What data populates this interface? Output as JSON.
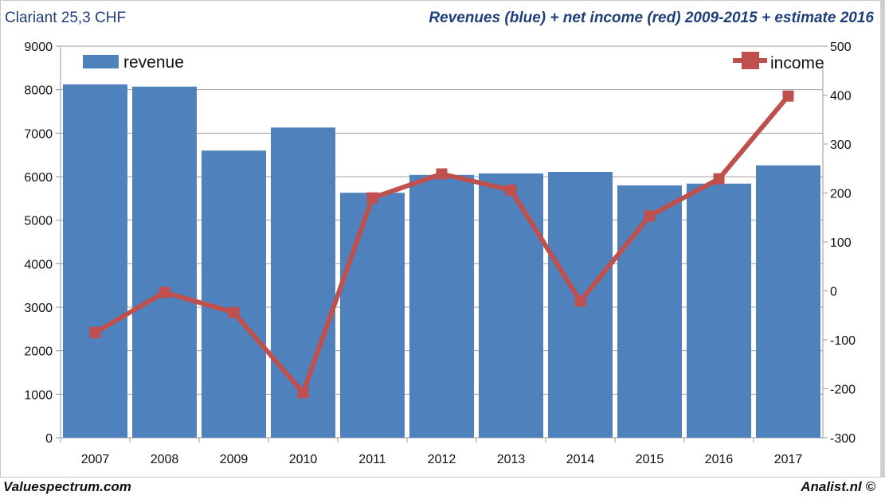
{
  "header": {
    "left_title": "Clariant  25,3 CHF",
    "right_title": "Revenues (blue) + net income (red) 2009-2015 + estimate 2016"
  },
  "footer": {
    "left": "Valuespectrum.com",
    "right": "Analist.nl ©"
  },
  "chart_data": {
    "type": "bar+line",
    "categories": [
      "2007",
      "2008",
      "2009",
      "2010",
      "2011",
      "2012",
      "2013",
      "2014",
      "2015",
      "2016",
      "2017"
    ],
    "series": [
      {
        "name": "revenue",
        "type": "bar",
        "axis": "left",
        "color": "#4f81bd",
        "values": [
          8120,
          8070,
          6600,
          7130,
          5630,
          6040,
          6075,
          6110,
          5800,
          5840,
          6260
        ]
      },
      {
        "name": "income",
        "type": "line",
        "axis": "right",
        "color": "#c0504d",
        "values": [
          -85,
          -3,
          -44,
          -208,
          190,
          239,
          206,
          -21,
          153,
          229,
          398
        ]
      }
    ],
    "left_axis": {
      "ylim": [
        0,
        9000
      ],
      "ticks": [
        "0",
        "1000",
        "2000",
        "3000",
        "4000",
        "5000",
        "6000",
        "7000",
        "8000",
        "9000"
      ]
    },
    "right_axis": {
      "ylim": [
        -300,
        500
      ],
      "ticks": [
        "-300",
        "-200",
        "-100",
        "0",
        "100",
        "200",
        "300",
        "400",
        "500"
      ]
    },
    "grid": true,
    "legend": {
      "revenue": "top-left",
      "income": "top-right"
    }
  }
}
